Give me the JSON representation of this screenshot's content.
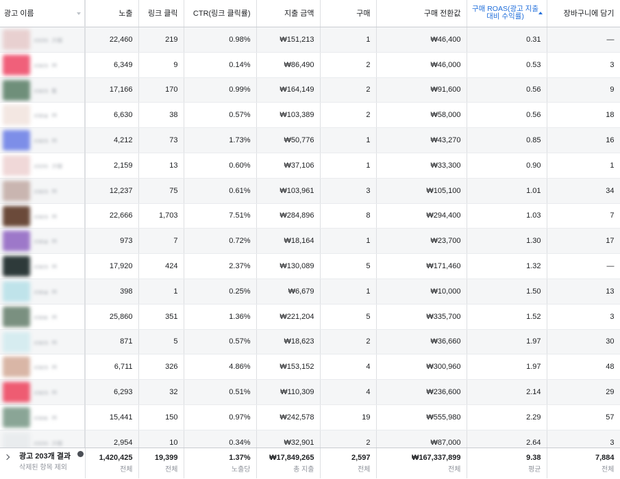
{
  "columns": [
    "광고 이름",
    "노출",
    "링크 클릭",
    "CTR(링크 클릭률)",
    "지출 금액",
    "구매",
    "구매 전환값",
    "구매 ROAS(광고 지출 대비 수익률)",
    "장바구니에 담기"
  ],
  "rows": [
    {
      "thumb": "#e8d0d0",
      "name": "0320_기획..",
      "impr": "22,460",
      "clicks": "219",
      "ctr": "0.98%",
      "spend": "₩151,213",
      "purch": "1",
      "value": "₩46,400",
      "roas": "0.31",
      "cart": "—"
    },
    {
      "thumb": "#f0607a",
      "name": "0303_전..",
      "impr": "6,349",
      "clicks": "9",
      "ctr": "0.14%",
      "spend": "₩86,490",
      "purch": "2",
      "value": "₩46,000",
      "roas": "0.53",
      "cart": "3"
    },
    {
      "thumb": "#6f8f7a",
      "name": "0303_특..",
      "impr": "17,166",
      "clicks": "170",
      "ctr": "0.99%",
      "spend": "₩164,149",
      "purch": "2",
      "value": "₩91,600",
      "roas": "0.56",
      "cart": "9"
    },
    {
      "thumb": "#f3e7e2",
      "name": "0304_전..",
      "impr": "6,630",
      "clicks": "38",
      "ctr": "0.57%",
      "spend": "₩103,389",
      "purch": "2",
      "value": "₩58,000",
      "roas": "0.56",
      "cart": "18"
    },
    {
      "thumb": "#7d8ee8",
      "name": "0303_전..",
      "impr": "4,212",
      "clicks": "73",
      "ctr": "1.73%",
      "spend": "₩50,776",
      "purch": "1",
      "value": "₩43,270",
      "roas": "0.85",
      "cart": "16"
    },
    {
      "thumb": "#f0d8d8",
      "name": "0320_기획..",
      "impr": "2,159",
      "clicks": "13",
      "ctr": "0.60%",
      "spend": "₩37,106",
      "purch": "1",
      "value": "₩33,300",
      "roas": "0.90",
      "cart": "1"
    },
    {
      "thumb": "#c9b5b0",
      "name": "0303_전..",
      "impr": "12,237",
      "clicks": "75",
      "ctr": "0.61%",
      "spend": "₩103,961",
      "purch": "3",
      "value": "₩105,100",
      "roas": "1.01",
      "cart": "34"
    },
    {
      "thumb": "#6b4a3a",
      "name": "0303_전..",
      "impr": "22,666",
      "clicks": "1,703",
      "ctr": "7.51%",
      "spend": "₩284,896",
      "purch": "8",
      "value": "₩294,400",
      "roas": "1.03",
      "cart": "7"
    },
    {
      "thumb": "#9d78c9",
      "name": "0304_전..",
      "impr": "973",
      "clicks": "7",
      "ctr": "0.72%",
      "spend": "₩18,164",
      "purch": "1",
      "value": "₩23,700",
      "roas": "1.30",
      "cart": "17"
    },
    {
      "thumb": "#2e3a3a",
      "name": "0303_전..",
      "impr": "17,920",
      "clicks": "424",
      "ctr": "2.37%",
      "spend": "₩130,089",
      "purch": "5",
      "value": "₩171,460",
      "roas": "1.32",
      "cart": "—"
    },
    {
      "thumb": "#bfe3ea",
      "name": "0304_전..",
      "impr": "398",
      "clicks": "1",
      "ctr": "0.25%",
      "spend": "₩6,679",
      "purch": "1",
      "value": "₩10,000",
      "roas": "1.50",
      "cart": "13"
    },
    {
      "thumb": "#7a9080",
      "name": "0306_전..",
      "impr": "25,860",
      "clicks": "351",
      "ctr": "1.36%",
      "spend": "₩221,204",
      "purch": "5",
      "value": "₩335,700",
      "roas": "1.52",
      "cart": "3"
    },
    {
      "thumb": "#d6ecf0",
      "name": "0303_전..",
      "impr": "871",
      "clicks": "5",
      "ctr": "0.57%",
      "spend": "₩18,623",
      "purch": "2",
      "value": "₩36,660",
      "roas": "1.97",
      "cart": "30"
    },
    {
      "thumb": "#d9b6a6",
      "name": "0303_전..",
      "impr": "6,711",
      "clicks": "326",
      "ctr": "4.86%",
      "spend": "₩153,152",
      "purch": "4",
      "value": "₩300,960",
      "roas": "1.97",
      "cart": "48"
    },
    {
      "thumb": "#ee5c72",
      "name": "0303_전..",
      "impr": "6,293",
      "clicks": "32",
      "ctr": "0.51%",
      "spend": "₩110,309",
      "purch": "4",
      "value": "₩236,600",
      "roas": "2.14",
      "cart": "29"
    },
    {
      "thumb": "#8aa596",
      "name": "0306_전..",
      "impr": "15,441",
      "clicks": "150",
      "ctr": "0.97%",
      "spend": "₩242,578",
      "purch": "19",
      "value": "₩555,980",
      "roas": "2.29",
      "cart": "57"
    },
    {
      "thumb": "#e9ecee",
      "name": "0320_기획..",
      "impr": "2,954",
      "clicks": "10",
      "ctr": "0.34%",
      "spend": "₩32,901",
      "purch": "2",
      "value": "₩87,000",
      "roas": "2.64",
      "cart": "3"
    }
  ],
  "footer": {
    "title": "광고 203개 결과",
    "subtitle": "삭제된 항목 제외",
    "totals": [
      {
        "v": "1,420,425",
        "s": "전체"
      },
      {
        "v": "19,399",
        "s": "전체"
      },
      {
        "v": "1.37%",
        "s": "노출당"
      },
      {
        "v": "₩17,849,265",
        "s": "총 지출"
      },
      {
        "v": "2,597",
        "s": "전체"
      },
      {
        "v": "₩167,337,899",
        "s": "전체"
      },
      {
        "v": "9.38",
        "s": "평균"
      },
      {
        "v": "7,884",
        "s": "전체"
      }
    ]
  },
  "colors": {
    "accent": "#216fdb",
    "border": "#dddfe2",
    "zebra": "#f5f6f7"
  }
}
